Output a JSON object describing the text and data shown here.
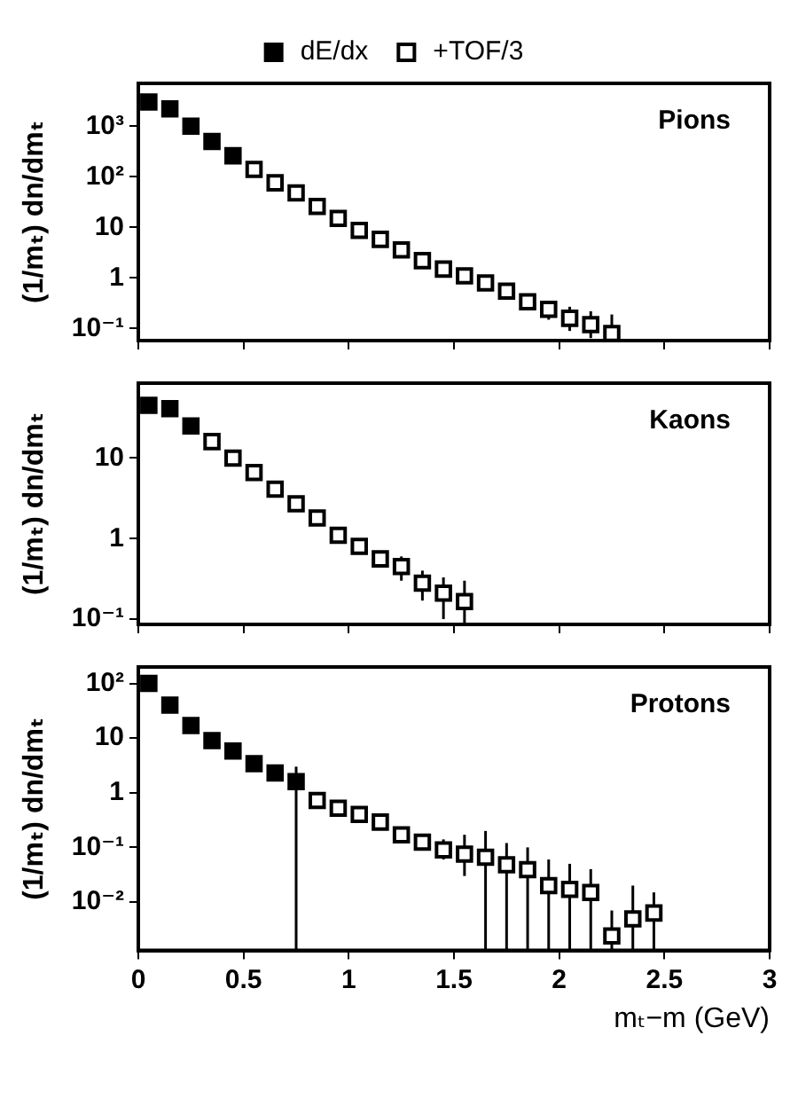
{
  "chart_data": [
    {
      "type": "scatter",
      "annotations": [
        "Pions"
      ],
      "ylabel": "(1/mₜ) dn/dmₜ",
      "xlim": [
        0,
        3
      ],
      "xticks": [
        0,
        0.5,
        1,
        1.5,
        2,
        2.5,
        3
      ],
      "ylim": [
        0.058,
        7000
      ],
      "yticks": [
        {
          "value": 0.1,
          "label": "10⁻¹"
        },
        {
          "value": 1,
          "label": "1"
        },
        {
          "value": 10,
          "label": "10"
        },
        {
          "value": 100,
          "label": "10²"
        },
        {
          "value": 1000,
          "label": "10³"
        }
      ],
      "log": "y",
      "grid": false,
      "tick_labels": "y",
      "marker": "square",
      "legend": "top",
      "series": [
        {
          "name": "dE/dx",
          "color": "#000000",
          "x": [
            0.05,
            0.15,
            0.25,
            0.35,
            0.45
          ],
          "values": [
            3000,
            2200,
            1000,
            500,
            260
          ]
        },
        {
          "name": "+TOF/3",
          "color": "#000000",
          "x": [
            0.55,
            0.65,
            0.75,
            0.85,
            0.95,
            1.05,
            1.15,
            1.25,
            1.35,
            1.45,
            1.55,
            1.65,
            1.75,
            1.85,
            1.95,
            2.05,
            2.15,
            2.25
          ],
          "values": [
            140,
            76,
            48,
            26,
            15,
            8.7,
            5.8,
            3.6,
            2.2,
            1.5,
            1.1,
            0.8,
            0.55,
            0.34,
            0.24,
            0.16,
            0.12,
            0.08
          ],
          "errors": [
            null,
            null,
            null,
            null,
            null,
            null,
            null,
            null,
            null,
            null,
            null,
            null,
            null,
            null,
            [
              0.15,
              0.35
            ],
            [
              0.09,
              0.27
            ],
            [
              0.065,
              0.22
            ],
            [
              0.058,
              0.19
            ]
          ]
        }
      ]
    },
    {
      "type": "scatter",
      "annotations": [
        "Kaons"
      ],
      "ylabel": "(1/mₜ) dn/dmₜ",
      "xlim": [
        0,
        3
      ],
      "xticks": [
        0,
        0.5,
        1,
        1.5,
        2,
        2.5,
        3
      ],
      "ylim": [
        0.086,
        85
      ],
      "yticks": [
        {
          "value": 0.1,
          "label": "10⁻¹"
        },
        {
          "value": 1,
          "label": "1"
        },
        {
          "value": 10,
          "label": "10"
        }
      ],
      "log": "y",
      "grid": false,
      "tick_labels": "y",
      "marker": "square",
      "series": [
        {
          "color": "#000000",
          "x": [
            0.05,
            0.15,
            0.25
          ],
          "values": [
            45,
            41,
            25
          ]
        },
        {
          "color": "#000000",
          "x": [
            0.35,
            0.45,
            0.55,
            0.65,
            0.75,
            0.85,
            0.95,
            1.05,
            1.15,
            1.25,
            1.35,
            1.45,
            1.55
          ],
          "values": [
            16,
            10,
            6.6,
            4.1,
            2.7,
            1.8,
            1.1,
            0.8,
            0.56,
            0.45,
            0.28,
            0.21,
            0.165
          ],
          "errors": [
            null,
            null,
            null,
            null,
            null,
            null,
            null,
            null,
            null,
            [
              0.3,
              0.6
            ],
            [
              0.17,
              0.4
            ],
            [
              0.1,
              0.33
            ],
            [
              0.086,
              0.3
            ]
          ]
        }
      ]
    },
    {
      "type": "scatter",
      "annotations": [
        "Protons"
      ],
      "ylabel": "(1/mₜ) dn/dmₜ",
      "xlabel": "mₜ−m (GeV)",
      "xlim": [
        0,
        3
      ],
      "xticks": [
        0,
        0.5,
        1,
        1.5,
        2,
        2.5,
        3
      ],
      "ylim": [
        0.0013,
        200
      ],
      "yticks": [
        {
          "value": 0.01,
          "label": "10⁻²"
        },
        {
          "value": 0.1,
          "label": "10⁻¹"
        },
        {
          "value": 1,
          "label": "1"
        },
        {
          "value": 10,
          "label": "10"
        },
        {
          "value": 100,
          "label": "10²"
        }
      ],
      "log": "y",
      "grid": false,
      "marker": "square",
      "series": [
        {
          "color": "#000000",
          "x": [
            0.05,
            0.15,
            0.25,
            0.35,
            0.45,
            0.55,
            0.65,
            0.75
          ],
          "values": [
            100,
            40,
            17,
            9,
            5.8,
            3.4,
            2.3,
            1.6
          ],
          "errors": [
            null,
            null,
            null,
            null,
            null,
            null,
            null,
            [
              0.0013,
              3
            ]
          ]
        },
        {
          "color": "#000000",
          "x": [
            0.85,
            0.95,
            1.05,
            1.15,
            1.25,
            1.35,
            1.45,
            1.55,
            1.65,
            1.75,
            1.85,
            1.95,
            2.05,
            2.15,
            2.25,
            2.35,
            2.45
          ],
          "values": [
            0.72,
            0.52,
            0.4,
            0.29,
            0.17,
            0.125,
            0.09,
            0.075,
            0.066,
            0.048,
            0.039,
            0.02,
            0.017,
            0.015,
            0.0024,
            0.0049,
            0.0063
          ],
          "errors": [
            null,
            null,
            null,
            null,
            null,
            null,
            [
              0.06,
              0.14
            ],
            [
              0.03,
              0.17
            ],
            [
              0.0013,
              0.2
            ],
            [
              0.0013,
              0.12
            ],
            [
              0.0013,
              0.1
            ],
            [
              0.0013,
              0.06
            ],
            [
              0.0013,
              0.05
            ],
            [
              0.0013,
              0.04
            ],
            [
              0.0013,
              0.007
            ],
            [
              0.0013,
              0.02
            ],
            [
              0.0013,
              0.015
            ]
          ]
        }
      ]
    }
  ]
}
